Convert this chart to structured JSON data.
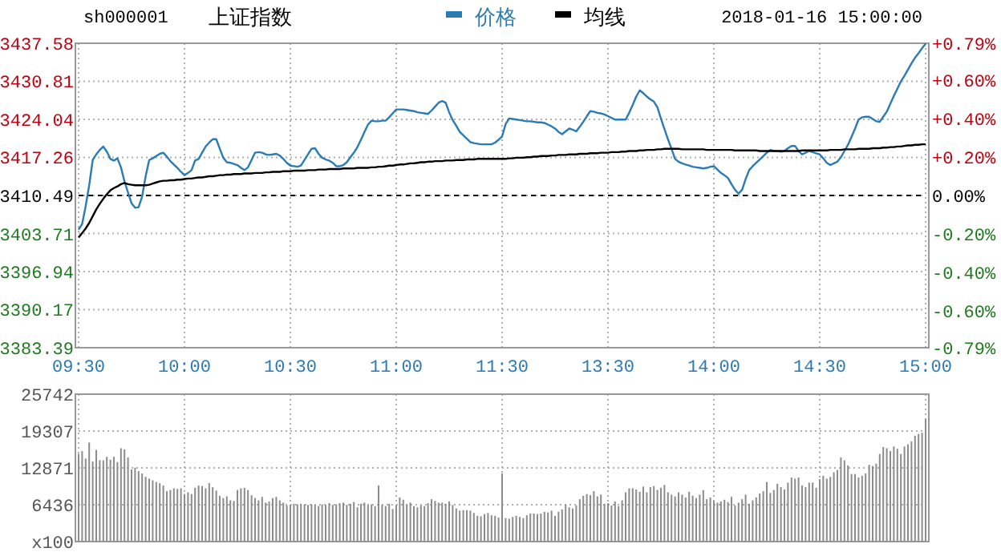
{
  "chart_data": [
    {
      "type": "line",
      "title": "上证指数",
      "subtitle": "sh000001",
      "annotations": [
        "2018-01-16 15:00:00"
      ],
      "categories": [
        "09:30",
        null,
        null,
        null,
        null,
        null,
        null,
        null,
        null,
        null,
        null,
        null,
        null,
        null,
        null,
        null,
        null,
        null,
        null,
        null,
        null,
        null,
        null,
        null,
        null,
        null,
        null,
        null,
        null,
        null,
        "10:00",
        null,
        null,
        null,
        null,
        null,
        null,
        null,
        null,
        null,
        null,
        null,
        null,
        null,
        null,
        null,
        null,
        null,
        null,
        null,
        null,
        null,
        null,
        null,
        null,
        null,
        null,
        null,
        null,
        null,
        "10:30",
        null,
        null,
        null,
        null,
        null,
        null,
        null,
        null,
        null,
        null,
        null,
        null,
        null,
        null,
        null,
        null,
        null,
        null,
        null,
        null,
        null,
        null,
        null,
        null,
        null,
        null,
        null,
        null,
        null,
        "11:00",
        null,
        null,
        null,
        null,
        null,
        null,
        null,
        null,
        null,
        null,
        null,
        null,
        null,
        null,
        null,
        null,
        null,
        null,
        null,
        null,
        null,
        null,
        null,
        null,
        null,
        null,
        null,
        null,
        null,
        "11:30",
        null,
        null,
        null,
        null,
        null,
        null,
        null,
        null,
        null,
        null,
        null,
        null,
        null,
        null,
        null,
        null,
        null,
        null,
        null,
        null,
        null,
        null,
        null,
        null,
        null,
        null,
        null,
        null,
        null,
        "13:30",
        null,
        null,
        null,
        null,
        null,
        null,
        null,
        null,
        null,
        null,
        null,
        null,
        null,
        null,
        null,
        null,
        null,
        null,
        null,
        null,
        null,
        null,
        null,
        null,
        null,
        null,
        null,
        null,
        null,
        "14:00",
        null,
        null,
        null,
        null,
        null,
        null,
        null,
        null,
        null,
        null,
        null,
        null,
        null,
        null,
        null,
        null,
        null,
        null,
        null,
        null,
        null,
        null,
        null,
        null,
        null,
        null,
        null,
        null,
        null,
        "14:30",
        null,
        null,
        null,
        null,
        null,
        null,
        null,
        null,
        null,
        null,
        null,
        null,
        null,
        null,
        null,
        null,
        null,
        null,
        null,
        null,
        null,
        null,
        null,
        null,
        null,
        null,
        null,
        null,
        null,
        "15:00"
      ],
      "ylim": [
        3383.39,
        3437.58
      ],
      "yticks": [
        3383.39,
        3390.17,
        3396.94,
        3403.71,
        3410.49,
        3417.26,
        3424.04,
        3430.81,
        3437.58
      ],
      "y2lim": [
        -0.79,
        0.79
      ],
      "y2ticks": [
        {
          "value": -0.79,
          "label": "-0.79%"
        },
        {
          "value": -0.6,
          "label": "-0.60%"
        },
        {
          "value": -0.4,
          "label": "-0.40%"
        },
        {
          "value": -0.2,
          "label": "-0.20%"
        },
        {
          "value": 0,
          "label": "0.00%"
        },
        {
          "value": 0.2,
          "label": "+0.20%"
        },
        {
          "value": 0.4,
          "label": "+0.40%"
        },
        {
          "value": 0.6,
          "label": "+0.60%"
        },
        {
          "value": 0.79,
          "label": "+0.79%"
        }
      ],
      "grid": true,
      "legend": "top",
      "ref_lines": [
        {
          "axis": "y",
          "value": 3410.49,
          "line_style": "dashed",
          "color": "#000000"
        }
      ],
      "series": [
        {
          "name": "价格",
          "color": "#2b7bb5",
          "values": [
            3404.4,
            3405.4,
            3408.6,
            3412.3,
            3416.8,
            3417.8,
            3418.6,
            3419.2,
            3418.3,
            3417.0,
            3416.7,
            3417.1,
            3415.5,
            3413.0,
            3411.0,
            3409.1,
            3408.3,
            3408.4,
            3410.3,
            3413.9,
            3416.8,
            3417.1,
            3417.5,
            3417.9,
            3418.1,
            3417.4,
            3416.6,
            3416.0,
            3415.4,
            3414.7,
            3414.1,
            3414.5,
            3415.0,
            3416.7,
            3417.0,
            3418.1,
            3419.2,
            3419.9,
            3420.5,
            3420.5,
            3418.8,
            3417.2,
            3416.4,
            3416.3,
            3416.1,
            3415.9,
            3415.4,
            3415.0,
            3415.5,
            3416.8,
            3418.1,
            3418.2,
            3418.1,
            3417.8,
            3417.7,
            3417.8,
            3417.9,
            3417.6,
            3417.0,
            3416.3,
            3415.8,
            3415.7,
            3415.6,
            3415.8,
            3416.8,
            3417.8,
            3418.8,
            3418.9,
            3417.9,
            3417.2,
            3416.9,
            3416.7,
            3416.3,
            3415.7,
            3415.7,
            3415.9,
            3416.4,
            3417.3,
            3418.1,
            3419.1,
            3420.4,
            3421.8,
            3423.1,
            3423.8,
            3423.7,
            3423.7,
            3423.8,
            3423.8,
            3424.4,
            3425.1,
            3425.8,
            3425.8,
            3425.8,
            3425.7,
            3425.6,
            3425.5,
            3425.3,
            3425.2,
            3425.1,
            3425.0,
            3425.6,
            3426.3,
            3427.0,
            3427.3,
            3427.0,
            3425.3,
            3423.9,
            3422.9,
            3421.8,
            3421.2,
            3420.6,
            3420.0,
            3419.8,
            3419.7,
            3419.6,
            3419.6,
            3419.6,
            3419.6,
            3419.9,
            3420.4,
            3421.0,
            3423.2,
            3424.2,
            3424.1,
            3424.0,
            3423.9,
            3423.8,
            3423.7,
            3423.7,
            3423.6,
            3423.5,
            3423.5,
            3423.4,
            3423.1,
            3422.8,
            3422.4,
            3421.8,
            3421.4,
            3421.9,
            3422.4,
            3422.2,
            3421.9,
            3422.7,
            3423.6,
            3424.6,
            3425.5,
            3425.4,
            3425.2,
            3425.1,
            3424.9,
            3424.6,
            3424.3,
            3424.0,
            3424.0,
            3424.0,
            3424.0,
            3425.2,
            3426.6,
            3428.1,
            3429.2,
            3428.7,
            3428.1,
            3427.6,
            3427.2,
            3426.2,
            3424.2,
            3422.3,
            3420.5,
            3418.8,
            3417.0,
            3416.5,
            3416.2,
            3416.0,
            3415.8,
            3415.6,
            3415.5,
            3415.4,
            3415.3,
            3415.4,
            3415.6,
            3415.7,
            3415.1,
            3414.5,
            3414.1,
            3413.6,
            3412.5,
            3411.5,
            3410.8,
            3411.5,
            3413.4,
            3415.0,
            3415.7,
            3416.3,
            3416.9,
            3417.5,
            3418.1,
            3418.6,
            3418.4,
            3418.4,
            3418.3,
            3418.4,
            3418.9,
            3419.3,
            3419.3,
            3418.4,
            3417.8,
            3418.1,
            3418.4,
            3418.2,
            3418.0,
            3417.8,
            3417.1,
            3416.3,
            3415.9,
            3416.2,
            3416.5,
            3417.3,
            3418.4,
            3419.5,
            3420.9,
            3422.4,
            3424.0,
            3424.4,
            3424.5,
            3424.5,
            3424.1,
            3423.7,
            3423.6,
            3424.5,
            3425.4,
            3426.8,
            3428.2,
            3429.5,
            3430.8,
            3431.8,
            3432.9,
            3434.0,
            3435.0,
            3435.8,
            3436.7,
            3437.5
          ]
        },
        {
          "name": "均线",
          "color": "#000000",
          "values": [
            3403.0,
            3403.8,
            3404.6,
            3405.6,
            3406.8,
            3408.0,
            3409.0,
            3409.9,
            3410.7,
            3411.4,
            3411.8,
            3412.1,
            3412.5,
            3412.7,
            3412.5,
            3412.4,
            3412.3,
            3412.3,
            3412.3,
            3412.3,
            3412.4,
            3412.6,
            3412.8,
            3413.0,
            3413.1,
            3413.1,
            3413.2,
            3413.2,
            3413.3,
            3413.3,
            3413.4,
            3413.5,
            3413.5,
            3413.6,
            3413.7,
            3413.7,
            3413.8,
            3413.9,
            3413.9,
            3414.0,
            3414.1,
            3414.1,
            3414.2,
            3414.2,
            3414.3,
            3414.3,
            3414.3,
            3414.4,
            3414.4,
            3414.4,
            3414.5,
            3414.5,
            3414.5,
            3414.6,
            3414.6,
            3414.7,
            3414.7,
            3414.7,
            3414.8,
            3414.8,
            3414.8,
            3414.9,
            3414.9,
            3414.9,
            3414.9,
            3415.0,
            3415.0,
            3415.0,
            3415.1,
            3415.1,
            3415.1,
            3415.2,
            3415.2,
            3415.2,
            3415.2,
            3415.3,
            3415.3,
            3415.3,
            3415.3,
            3415.4,
            3415.4,
            3415.4,
            3415.4,
            3415.5,
            3415.5,
            3415.6,
            3415.6,
            3415.7,
            3415.8,
            3415.8,
            3415.9,
            3416.0,
            3416.0,
            3416.1,
            3416.2,
            3416.2,
            3416.3,
            3416.4,
            3416.4,
            3416.5,
            3416.5,
            3416.6,
            3416.6,
            3416.6,
            3416.7,
            3416.7,
            3416.7,
            3416.8,
            3416.8,
            3416.8,
            3416.9,
            3416.9,
            3416.9,
            3417.0,
            3417.0,
            3417.0,
            3417.0,
            3417.0,
            3417.0,
            3417.0,
            3417.0,
            3417.0,
            3417.1,
            3417.1,
            3417.2,
            3417.2,
            3417.2,
            3417.3,
            3417.3,
            3417.4,
            3417.4,
            3417.5,
            3417.5,
            3417.5,
            3417.6,
            3417.6,
            3417.7,
            3417.7,
            3417.7,
            3417.8,
            3417.8,
            3417.8,
            3417.9,
            3417.9,
            3417.9,
            3418.0,
            3418.0,
            3418.0,
            3418.1,
            3418.1,
            3418.1,
            3418.2,
            3418.2,
            3418.2,
            3418.3,
            3418.3,
            3418.4,
            3418.4,
            3418.4,
            3418.5,
            3418.5,
            3418.6,
            3418.6,
            3418.6,
            3418.7,
            3418.7,
            3418.8,
            3418.8,
            3418.8,
            3418.8,
            3418.8,
            3418.7,
            3418.7,
            3418.7,
            3418.7,
            3418.7,
            3418.7,
            3418.7,
            3418.6,
            3418.6,
            3418.6,
            3418.6,
            3418.6,
            3418.6,
            3418.6,
            3418.6,
            3418.5,
            3418.5,
            3418.5,
            3418.5,
            3418.5,
            3418.5,
            3418.5,
            3418.4,
            3418.4,
            3418.4,
            3418.4,
            3418.4,
            3418.4,
            3418.4,
            3418.4,
            3418.4,
            3418.4,
            3418.4,
            3418.4,
            3418.5,
            3418.5,
            3418.5,
            3418.5,
            3418.5,
            3418.5,
            3418.5,
            3418.5,
            3418.6,
            3418.6,
            3418.6,
            3418.6,
            3418.7,
            3418.7,
            3418.7,
            3418.7,
            3418.8,
            3418.8,
            3418.8,
            3418.8,
            3418.9,
            3418.9,
            3418.9,
            3419.0,
            3419.0,
            3419.1,
            3419.1,
            3419.2,
            3419.2,
            3419.3,
            3419.4,
            3419.4,
            3419.5,
            3419.5,
            3419.6,
            3419.6
          ]
        }
      ]
    },
    {
      "type": "bar",
      "color": "#8c8c8c",
      "categories": [
        null,
        null,
        null,
        null,
        null,
        null,
        null,
        null,
        null,
        null,
        null,
        null,
        null,
        null,
        null,
        null,
        null,
        null,
        null,
        null,
        null,
        null,
        null,
        null,
        null,
        null,
        null,
        null,
        null,
        null,
        null,
        null,
        null,
        null,
        null,
        null,
        null,
        null,
        null,
        null,
        null,
        null,
        null,
        null,
        null,
        null,
        null,
        null,
        null,
        null,
        null,
        null,
        null,
        null,
        null,
        null,
        null,
        null,
        null,
        null,
        null,
        null,
        null,
        null,
        null,
        null,
        null,
        null,
        null,
        null,
        null,
        null,
        null,
        null,
        null,
        null,
        null,
        null,
        null,
        null,
        null,
        null,
        null,
        null,
        null,
        null,
        null,
        null,
        null,
        null,
        null,
        null,
        null,
        null,
        null,
        null,
        null,
        null,
        null,
        null,
        null,
        null,
        null,
        null,
        null,
        null,
        null,
        null,
        null,
        null,
        null,
        null,
        null,
        null,
        null,
        null,
        null,
        null,
        null,
        null,
        null,
        null,
        null,
        null,
        null,
        null,
        null,
        null,
        null,
        null,
        null,
        null,
        null,
        null,
        null,
        null,
        null,
        null,
        null,
        null,
        null,
        null,
        null,
        null,
        null,
        null,
        null,
        null,
        null,
        null,
        null,
        null,
        null,
        null,
        null,
        null,
        null,
        null,
        null,
        null,
        null,
        null,
        null,
        null,
        null,
        null,
        null,
        null,
        null,
        null,
        null,
        null,
        null,
        null,
        null,
        null,
        null,
        null,
        null,
        null,
        null,
        null,
        null,
        null,
        null,
        null,
        null,
        null,
        null,
        null,
        null,
        null,
        null,
        null,
        null,
        null,
        null,
        null,
        null,
        null,
        null,
        null,
        null,
        null,
        null,
        null,
        null,
        null,
        null,
        null,
        null,
        null,
        null,
        null,
        null,
        null,
        null,
        null,
        null,
        null,
        null,
        null,
        null,
        null,
        null,
        null,
        null,
        null,
        null,
        null,
        null,
        null,
        null,
        null,
        null,
        null,
        null,
        null,
        null,
        null,
        null
      ],
      "ylim": [
        0,
        25742
      ],
      "yticks": [
        {
          "value": 0,
          "label": "x100"
        },
        6436,
        12871,
        19307,
        25742
      ],
      "grid": true,
      "tick_labels": "y",
      "values": [
        15300,
        15800,
        14500,
        17300,
        14000,
        16000,
        14200,
        14200,
        14800,
        14300,
        14800,
        13900,
        16300,
        16100,
        14700,
        12600,
        12900,
        12300,
        11900,
        11300,
        11000,
        10700,
        10400,
        10200,
        9800,
        8800,
        9000,
        9300,
        9200,
        9300,
        8300,
        8600,
        8300,
        9400,
        9800,
        9700,
        9300,
        10200,
        9500,
        8900,
        8000,
        7600,
        7900,
        7200,
        7100,
        9000,
        9300,
        9400,
        9000,
        8100,
        7600,
        7200,
        7800,
        6800,
        7000,
        7600,
        7800,
        7200,
        6800,
        6300,
        6400,
        6600,
        6500,
        6600,
        6500,
        6400,
        6500,
        6400,
        6200,
        6500,
        6400,
        6700,
        6400,
        6500,
        6700,
        6800,
        6400,
        6600,
        6900,
        6000,
        6600,
        6800,
        6400,
        6500,
        6200,
        9800,
        6400,
        6200,
        6600,
        5700,
        6300,
        7700,
        7300,
        6500,
        6800,
        6200,
        6000,
        6300,
        6200,
        6700,
        7400,
        7100,
        6800,
        6800,
        6600,
        7000,
        6400,
        5800,
        5400,
        5500,
        5500,
        5400,
        5000,
        4500,
        4400,
        4800,
        5000,
        4600,
        4500,
        4200,
        11900,
        4100,
        4000,
        4300,
        4500,
        4300,
        4100,
        4600,
        4900,
        4900,
        4800,
        4900,
        5200,
        5100,
        5400,
        4500,
        5200,
        5600,
        6500,
        6000,
        5800,
        6300,
        7400,
        8000,
        8300,
        8100,
        8800,
        7900,
        8200,
        6600,
        6700,
        6300,
        7000,
        6200,
        7200,
        8600,
        9300,
        9300,
        9100,
        8700,
        9600,
        8600,
        9500,
        9700,
        9000,
        9400,
        9900,
        8600,
        8200,
        7900,
        8600,
        8200,
        7700,
        8700,
        8000,
        7600,
        8200,
        9000,
        7400,
        7700,
        7100,
        6800,
        7000,
        7300,
        6900,
        7800,
        6300,
        6800,
        7400,
        8200,
        6600,
        7200,
        7700,
        8400,
        8800,
        10400,
        8500,
        9000,
        10100,
        9500,
        9100,
        10300,
        11200,
        11000,
        11200,
        9800,
        9500,
        10300,
        10300,
        9400,
        10900,
        11500,
        11000,
        11300,
        12100,
        12500,
        14700,
        14200,
        13300,
        11800,
        11800,
        11200,
        11500,
        11900,
        13400,
        13200,
        13600,
        15300,
        16500,
        16300,
        15800,
        16600,
        16200,
        15300,
        16600,
        17000,
        17500,
        18500,
        18800,
        19000,
        21400
      ]
    }
  ]
}
